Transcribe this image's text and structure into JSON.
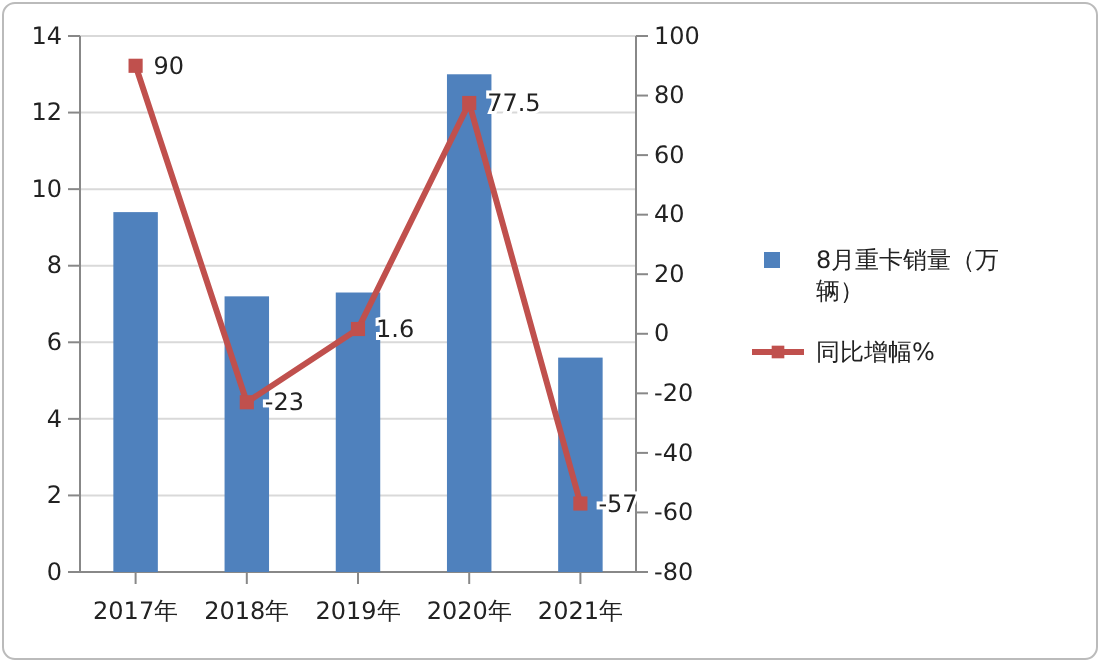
{
  "chart_data": {
    "type": "bar",
    "categories": [
      "2017年",
      "2018年",
      "2019年",
      "2020年",
      "2021年"
    ],
    "series": [
      {
        "name": "8月重卡销量（万辆）",
        "color": "#4f81bd",
        "values": [
          9.4,
          7.2,
          7.3,
          13.0,
          5.6
        ]
      },
      {
        "name": "同比增幅%",
        "type": "line",
        "axis": "y2",
        "color": "#c0504d",
        "marker": "square",
        "values": [
          90,
          -23,
          1.6,
          77.5,
          -57
        ],
        "value_labels": [
          "90",
          "-23",
          "1.6",
          "77.5",
          "-57"
        ]
      }
    ],
    "ylim": [
      0,
      14
    ],
    "yticks": [
      0,
      2,
      4,
      6,
      8,
      10,
      12,
      14
    ],
    "y2lim": [
      -80,
      100
    ],
    "y2ticks": [
      -80,
      -60,
      -40,
      -20,
      0,
      20,
      40,
      60,
      80,
      100
    ],
    "grid": "y",
    "legend": "right"
  }
}
